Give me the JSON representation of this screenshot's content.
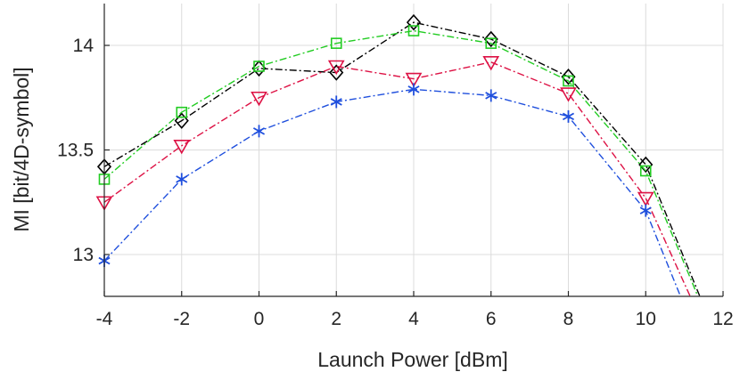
{
  "chart_data": {
    "type": "line",
    "xlabel": "Launch Power [dBm]",
    "ylabel": "MI [bit/4D-symbol]",
    "xlim": [
      -4,
      12
    ],
    "ylim": [
      12.8,
      14.2
    ],
    "xticks": [
      -4,
      -2,
      0,
      2,
      4,
      6,
      8,
      10,
      12
    ],
    "xtick_labels": [
      "-4",
      "-2",
      "0",
      "2",
      "4",
      "6",
      "8",
      "10",
      "12"
    ],
    "yticks": [
      13,
      13.5,
      14
    ],
    "ytick_labels": [
      "13",
      "13.5",
      "14"
    ],
    "grid": true,
    "legend": "none",
    "series": [
      {
        "marker": "diamond",
        "color": "#000000",
        "x": [
          -4,
          -2,
          0,
          2,
          4,
          6,
          8,
          10,
          11.4
        ],
        "y": [
          13.42,
          13.64,
          13.89,
          13.87,
          14.11,
          14.03,
          13.85,
          13.43,
          12.8
        ]
      },
      {
        "marker": "square",
        "color": "#22cc22",
        "x": [
          -4,
          -2,
          0,
          2,
          4,
          6,
          8,
          10,
          11.35
        ],
        "y": [
          13.36,
          13.68,
          13.9,
          14.01,
          14.07,
          14.01,
          13.83,
          13.4,
          12.8
        ]
      },
      {
        "marker": "triangle-down",
        "color": "#dd1144",
        "x": [
          -4,
          -2,
          0,
          2,
          4,
          6,
          8,
          10,
          11.15
        ],
        "y": [
          13.25,
          13.52,
          13.75,
          13.9,
          13.84,
          13.92,
          13.77,
          13.27,
          12.8
        ]
      },
      {
        "marker": "asterisk",
        "color": "#1f4fdd",
        "x": [
          -4,
          -2,
          0,
          2,
          4,
          6,
          8,
          10,
          10.9
        ],
        "y": [
          12.97,
          13.36,
          13.59,
          13.73,
          13.79,
          13.76,
          13.66,
          13.21,
          12.8
        ]
      }
    ]
  }
}
